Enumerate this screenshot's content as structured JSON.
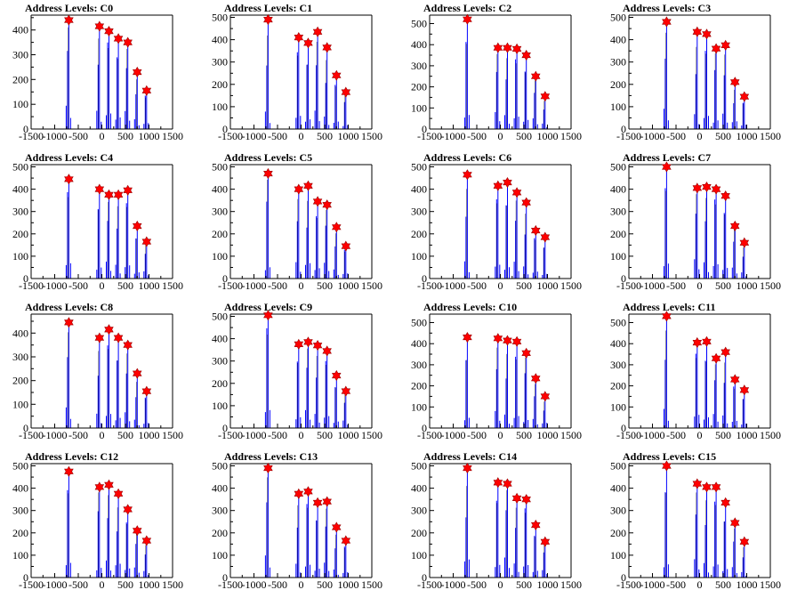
{
  "chart_data": {
    "type": "histogram",
    "x_ticks": [
      -1500,
      -1000,
      -500,
      0,
      500,
      1000,
      1500
    ],
    "x_tick_labels": [
      "-1500",
      "-1000",
      "-500",
      "0",
      "500",
      "1000",
      "1500"
    ],
    "xlim": [
      -1500,
      1500
    ],
    "y_ticks": [
      0,
      100,
      200,
      300,
      400,
      500
    ],
    "y_tick_labels": [
      "0",
      "100",
      "200",
      "300",
      "400",
      "500"
    ],
    "marker_x": [
      -700,
      -50,
      150,
      350,
      550,
      750,
      950
    ],
    "colors": {
      "histogram": "#0000ff",
      "marker": "#ff0000",
      "marker_edge": "#990000"
    },
    "panels": [
      {
        "title": "Address Levels: C0",
        "ymax": 460,
        "peaks": [
          440,
          415,
          395,
          365,
          350,
          230,
          155
        ]
      },
      {
        "title": "Address Levels: C1",
        "ymax": 510,
        "peaks": [
          490,
          410,
          385,
          435,
          365,
          240,
          165
        ]
      },
      {
        "title": "Address Levels: C2",
        "ymax": 540,
        "peaks": [
          520,
          385,
          385,
          380,
          350,
          250,
          155
        ]
      },
      {
        "title": "Address Levels: C3",
        "ymax": 510,
        "peaks": [
          480,
          435,
          425,
          360,
          375,
          210,
          145
        ]
      },
      {
        "title": "Address Levels: C4",
        "ymax": 510,
        "peaks": [
          445,
          400,
          375,
          375,
          395,
          235,
          165
        ]
      },
      {
        "title": "Address Levels: C5",
        "ymax": 510,
        "peaks": [
          470,
          400,
          415,
          345,
          330,
          230,
          145
        ]
      },
      {
        "title": "Address Levels: C6",
        "ymax": 510,
        "peaks": [
          465,
          415,
          430,
          385,
          340,
          215,
          185
        ]
      },
      {
        "title": "Address Levels: C7",
        "ymax": 510,
        "peaks": [
          500,
          405,
          410,
          400,
          370,
          235,
          160
        ]
      },
      {
        "title": "Address Levels: C8",
        "ymax": 480,
        "peaks": [
          445,
          380,
          415,
          380,
          350,
          230,
          155
        ]
      },
      {
        "title": "Address Levels: C9",
        "ymax": 510,
        "peaks": [
          505,
          375,
          385,
          370,
          345,
          235,
          165
        ]
      },
      {
        "title": "Address Levels: C10",
        "ymax": 540,
        "peaks": [
          430,
          425,
          415,
          410,
          355,
          235,
          150
        ]
      },
      {
        "title": "Address Levels: C11",
        "ymax": 540,
        "peaks": [
          530,
          405,
          410,
          330,
          360,
          230,
          180
        ]
      },
      {
        "title": "Address Levels: C12",
        "ymax": 510,
        "peaks": [
          475,
          405,
          415,
          375,
          305,
          210,
          165
        ]
      },
      {
        "title": "Address Levels: C13",
        "ymax": 510,
        "peaks": [
          490,
          375,
          385,
          335,
          340,
          225,
          165
        ]
      },
      {
        "title": "Address Levels: C14",
        "ymax": 510,
        "peaks": [
          490,
          425,
          420,
          355,
          350,
          235,
          160
        ]
      },
      {
        "title": "Address Levels: C15",
        "ymax": 510,
        "peaks": [
          500,
          420,
          405,
          405,
          335,
          245,
          160
        ]
      }
    ]
  }
}
